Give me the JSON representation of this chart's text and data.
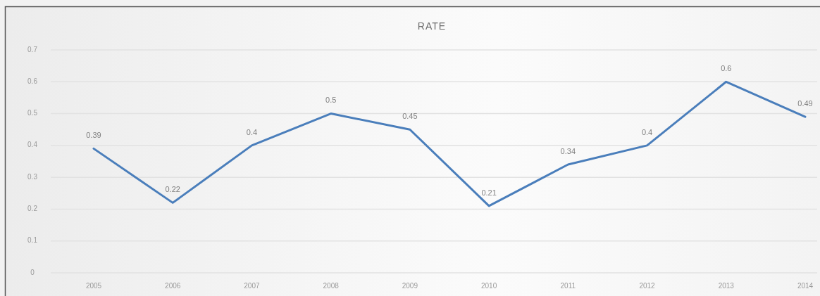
{
  "chart_data": {
    "type": "line",
    "title": "RATE",
    "categories": [
      "2005",
      "2006",
      "2007",
      "2008",
      "2009",
      "2010",
      "2011",
      "2012",
      "2013",
      "2014"
    ],
    "series": [
      {
        "color": "#4a7ebb",
        "values": [
          0.39,
          0.22,
          0.4,
          0.5,
          0.45,
          0.21,
          0.34,
          0.4,
          0.6,
          0.49
        ]
      }
    ],
    "ylim": [
      0,
      0.7
    ],
    "yticks": [
      0,
      0.1,
      0.2,
      0.3,
      0.4,
      0.5,
      0.6,
      0.7
    ],
    "grid": "y",
    "data_labels": true
  }
}
